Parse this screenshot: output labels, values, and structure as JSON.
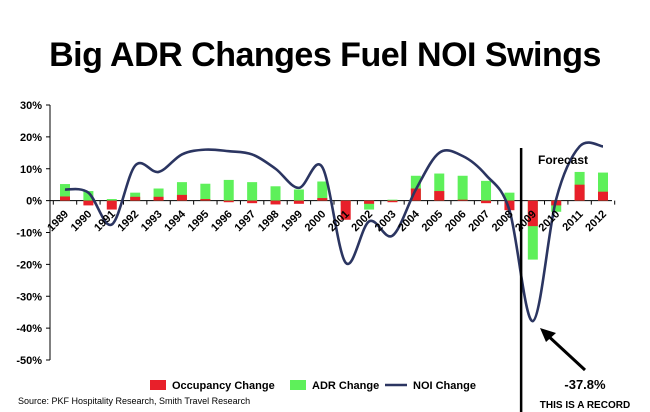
{
  "chart_data": {
    "type": "bar",
    "title": "Big ADR Changes Fuel NOI Swings",
    "categories": [
      "1989",
      "1990",
      "1991",
      "1992",
      "1993",
      "1994",
      "1995",
      "1996",
      "1997",
      "1998",
      "1999",
      "2000",
      "2001",
      "2002",
      "2003",
      "2004",
      "2005",
      "2006",
      "2007",
      "2008",
      "2009",
      "2010",
      "2011",
      "2012"
    ],
    "series": [
      {
        "name": "Occupancy Change",
        "color": "#e8202a",
        "values": [
          1.3,
          -1.5,
          -2.8,
          1.2,
          1.2,
          1.8,
          0.5,
          -0.5,
          -0.8,
          -1.2,
          -1.0,
          0.8,
          -6.0,
          -1.0,
          -0.5,
          3.8,
          3.0,
          0.3,
          -0.8,
          -3.0,
          -8.0,
          -1.5,
          5.0,
          2.8
        ]
      },
      {
        "name": "ADR Change",
        "color": "#5ef05a",
        "values": [
          5.2,
          3.0,
          0.5,
          2.5,
          3.8,
          5.8,
          5.3,
          6.5,
          5.8,
          4.5,
          3.5,
          6.0,
          -1.5,
          -2.8,
          0.3,
          7.8,
          8.5,
          7.8,
          6.2,
          2.5,
          -18.5,
          -3.5,
          9.0,
          8.8
        ]
      },
      {
        "name": "NOI Change",
        "color": "#2b3561",
        "values": [
          3.5,
          2.5,
          -7.5,
          11.0,
          9.0,
          14.5,
          16.0,
          15.5,
          14.5,
          10.0,
          4.0,
          10.5,
          -19.5,
          -6.5,
          -11.0,
          3.5,
          15.0,
          14.0,
          8.0,
          -3.0,
          -37.8,
          0.5,
          17.0,
          17.0
        ]
      }
    ],
    "ylim": [
      -50,
      30
    ],
    "yticks": [
      30,
      20,
      10,
      0,
      -10,
      -20,
      -30,
      -40,
      -50
    ],
    "ytick_labels": [
      "30%",
      "20%",
      "10%",
      "0%",
      "-10%",
      "-20%",
      "-30%",
      "-40%",
      "-50%"
    ],
    "legend": [
      "Occupancy Change",
      "ADR Change",
      "NOI Change"
    ],
    "legend_position": "bottom",
    "forecast_label": "Forecast",
    "forecast_divider_after": "2008",
    "annotation_value": "-37.8%",
    "annotation_text": "THIS IS A RECORD",
    "source": "Source: PKF Hospitality Research, Smith Travel Research"
  }
}
